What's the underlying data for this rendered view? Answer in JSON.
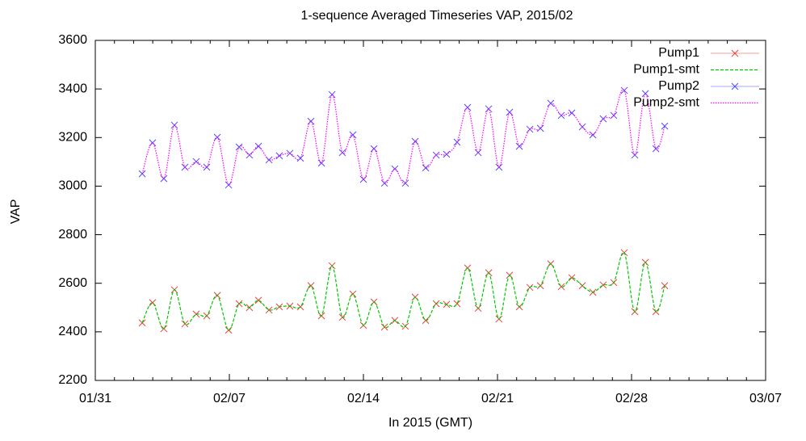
{
  "chart_data": {
    "type": "line",
    "title": "1-sequence Averaged Timeseries VAP, 2015/02",
    "x_label": "In 2015 (GMT)",
    "y_label": "VAP",
    "xlim": [
      0,
      35
    ],
    "xticks": [
      {
        "value": 0,
        "label": "01/31"
      },
      {
        "value": 7,
        "label": "02/07"
      },
      {
        "value": 14,
        "label": "02/14"
      },
      {
        "value": 21,
        "label": "02/21"
      },
      {
        "value": 28,
        "label": "02/28"
      },
      {
        "value": 35,
        "label": "03/07"
      }
    ],
    "ylim": [
      2200,
      3600
    ],
    "yticks": [
      2200,
      2400,
      2600,
      2800,
      3000,
      3200,
      3400,
      3600
    ],
    "legend": "top-right",
    "x": [
      2.45,
      2.99,
      3.58,
      4.13,
      4.68,
      5.27,
      5.82,
      6.37,
      6.96,
      7.51,
      8.05,
      8.52,
      9.07,
      9.61,
      10.16,
      10.71,
      11.26,
      11.81,
      12.36,
      12.9,
      13.45,
      14.0,
      14.55,
      15.1,
      15.64,
      16.19,
      16.7,
      17.25,
      17.8,
      18.34,
      18.89,
      19.44,
      19.99,
      20.54,
      21.08,
      21.63,
      22.14,
      22.69,
      23.24,
      23.78,
      24.33,
      24.88,
      25.43,
      25.98,
      26.52,
      27.07,
      27.62,
      28.17,
      28.72,
      29.27,
      29.73
    ],
    "series": [
      {
        "name": "Pump1",
        "color": "#e8403c",
        "mode": "points",
        "values": [
          2437,
          2520,
          2413,
          2573,
          2433,
          2473,
          2466,
          2550,
          2407,
          2516,
          2500,
          2530,
          2490,
          2503,
          2506,
          2503,
          2590,
          2466,
          2672,
          2460,
          2556,
          2427,
          2523,
          2420,
          2447,
          2423,
          2543,
          2447,
          2516,
          2513,
          2516,
          2663,
          2497,
          2643,
          2453,
          2633,
          2503,
          2583,
          2590,
          2680,
          2586,
          2623,
          2590,
          2563,
          2593,
          2603,
          2726,
          2483,
          2686,
          2483,
          2590
        ]
      },
      {
        "name": "Pump1-smt",
        "color": "#00c800",
        "mode": "dashed",
        "values": [
          2437,
          2520,
          2413,
          2573,
          2433,
          2473,
          2466,
          2550,
          2407,
          2516,
          2500,
          2530,
          2490,
          2503,
          2506,
          2503,
          2590,
          2466,
          2672,
          2460,
          2556,
          2427,
          2523,
          2420,
          2447,
          2423,
          2543,
          2447,
          2516,
          2513,
          2516,
          2663,
          2497,
          2643,
          2453,
          2633,
          2503,
          2583,
          2590,
          2680,
          2586,
          2623,
          2590,
          2563,
          2593,
          2603,
          2726,
          2483,
          2686,
          2483,
          2590
        ]
      },
      {
        "name": "Pump2",
        "color": "#4a4aff",
        "mode": "points",
        "values": [
          3051,
          3178,
          3031,
          3251,
          3078,
          3101,
          3078,
          3201,
          3005,
          3161,
          3128,
          3164,
          3108,
          3125,
          3135,
          3115,
          3267,
          3095,
          3377,
          3138,
          3211,
          3028,
          3154,
          3012,
          3071,
          3012,
          3184,
          3075,
          3128,
          3131,
          3181,
          3324,
          3138,
          3318,
          3078,
          3304,
          3164,
          3234,
          3238,
          3341,
          3291,
          3301,
          3244,
          3211,
          3277,
          3291,
          3394,
          3128,
          3381,
          3154,
          3247
        ]
      },
      {
        "name": "Pump2-smt",
        "color": "#ff00ff",
        "mode": "dotted",
        "values": [
          3051,
          3178,
          3031,
          3251,
          3078,
          3101,
          3078,
          3201,
          3005,
          3161,
          3128,
          3164,
          3108,
          3125,
          3135,
          3115,
          3267,
          3095,
          3377,
          3138,
          3211,
          3028,
          3154,
          3012,
          3071,
          3012,
          3184,
          3075,
          3128,
          3131,
          3181,
          3324,
          3138,
          3318,
          3078,
          3304,
          3164,
          3234,
          3238,
          3341,
          3291,
          3301,
          3244,
          3211,
          3277,
          3291,
          3394,
          3128,
          3381,
          3154,
          3247
        ]
      }
    ]
  }
}
